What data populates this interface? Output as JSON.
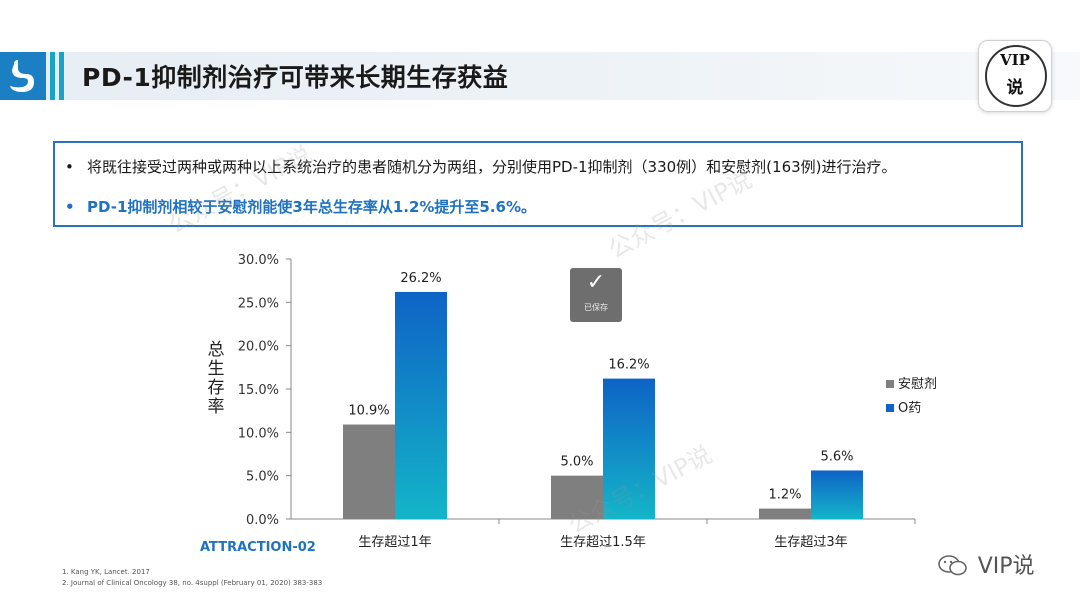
{
  "header": {
    "title": "PD-1抑制剂治疗可带来长期生存获益",
    "badge_line1": "VIP",
    "badge_line2": "说",
    "logo_icon": "stomach-icon"
  },
  "summary": {
    "bullet_char": "•",
    "line1": "将既往接受过两种或两种以上系统治疗的患者随机分为两组，分别使用PD-1抑制剂（330例）和安慰剂(163例)进行治疗。",
    "line2": "PD-1抑制剂相较于安慰剂能使3年总生存率从1.2%提升至5.6%。"
  },
  "watermark": {
    "text1": "公众号：VIP说",
    "text2": "公众号：VIP说",
    "text3": "公众号：VIP说"
  },
  "saved_toast": {
    "check": "✓",
    "label": "已保存"
  },
  "study_label": "ATTRACTION-02",
  "references": [
    "1.   Kang YK, Lancet. 2017",
    "2.   Journal of Clinical Oncology 38, no. 4suppl (February 01, 2020) 383-383"
  ],
  "footer": {
    "wechat_icon": "wechat-icon",
    "wechat_text": "VIP说"
  },
  "colors": {
    "placebo": "#7f7f7f",
    "drug_top": "#0e63c6",
    "drug_bottom": "#14b5c8",
    "accent": "#1e72c1"
  },
  "chart_data": {
    "type": "bar",
    "title": "",
    "ylabel": "总生存率",
    "xlabel": "",
    "ylim": [
      0,
      30
    ],
    "yticks": [
      "0.0%",
      "5.0%",
      "10.0%",
      "15.0%",
      "20.0%",
      "25.0%",
      "30.0%"
    ],
    "ytick_values": [
      0,
      5,
      10,
      15,
      20,
      25,
      30
    ],
    "categories": [
      "生存超过1年",
      "生存超过1.5年",
      "生存超过3年"
    ],
    "series": [
      {
        "name": "安慰剂",
        "values": [
          10.9,
          5.0,
          1.2
        ],
        "labels": [
          "10.9%",
          "5.0%",
          "1.2%"
        ]
      },
      {
        "name": "O药",
        "values": [
          26.2,
          16.2,
          5.6
        ],
        "labels": [
          "26.2%",
          "16.2%",
          "5.6%"
        ]
      }
    ],
    "legend_position": "right",
    "grid": false
  }
}
